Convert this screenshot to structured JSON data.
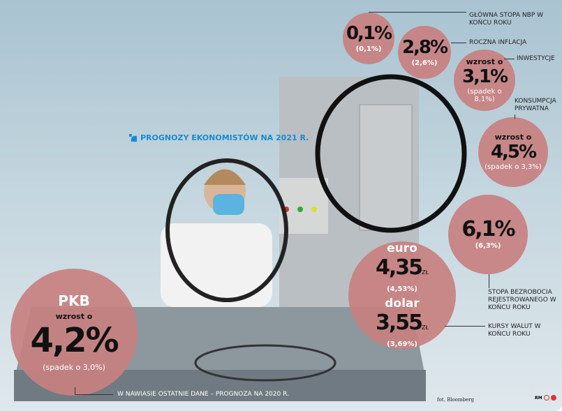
{
  "title": "PROGNOZY EKONOMISTÓW NA 2021 R.",
  "indicators": {
    "nbp": {
      "label": "GŁÓWNA STOPA NBP W KOŃCU ROKU",
      "value": "0,1%",
      "previous": "(0,1%)"
    },
    "inflation": {
      "label": "ROCZNA INFLACJA",
      "value": "2,8%",
      "previous": "(2,6%)"
    },
    "investment": {
      "label": "INWESTYCJE",
      "prefix": "wzrost o",
      "value": "3,1%",
      "previous": "(spadek o 8,1%)"
    },
    "consumption": {
      "label": "KONSUMPCJA PRYWATNA",
      "prefix": "wzrost o",
      "value": "4,5%",
      "previous": "(spadek o 3,3%)"
    },
    "unemployment": {
      "label": "STOPA BEZROBOCIA REJESTROWANEGO W KOŃCU ROKU",
      "value": "6,1%",
      "previous": "(6,3%)"
    },
    "fx": {
      "label": "KURSY WALUT W KOŃCU ROKU",
      "euro": {
        "name": "euro",
        "value": "4,35",
        "unit": "ZŁ",
        "previous": "(4,53%)"
      },
      "dollar": {
        "name": "dolar",
        "value": "3,55",
        "unit": "ZŁ",
        "previous": "(3,69%)"
      }
    },
    "gdp": {
      "name": "PKB",
      "prefix": "wzrost o",
      "value": "4,2%",
      "previous": "(spadek o 3,0%)"
    }
  },
  "footnote": "W NAWIASIE OSTATNIE DANE – PROGNOZA NA 2020 R.",
  "photo_credit": "fot. Bloomberg",
  "author": "RM",
  "colors": {
    "circle": "#c88080",
    "title": "#1b8bd0"
  }
}
